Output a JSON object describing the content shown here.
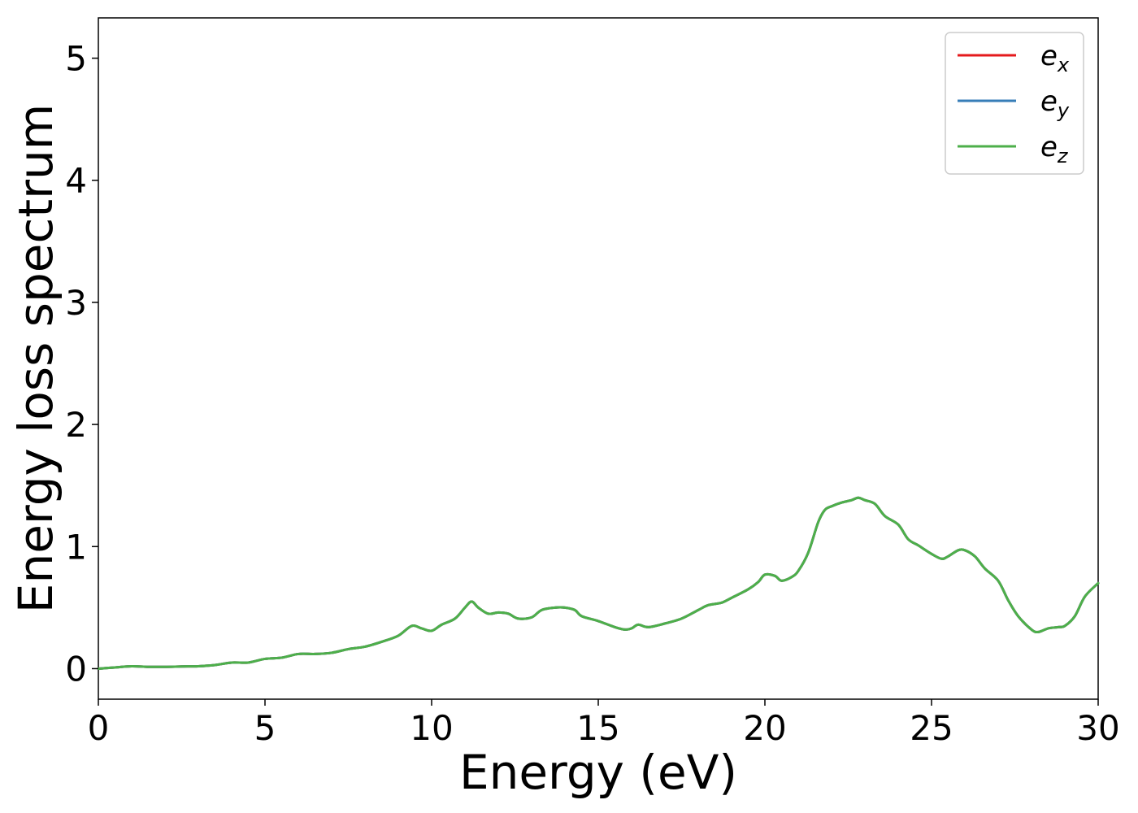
{
  "chart_data": {
    "type": "line",
    "title": "",
    "xlabel": "Energy (eV)",
    "ylabel": "Energy loss spectrum",
    "xlim": [
      0,
      30
    ],
    "ylim": [
      -0.25,
      5.33
    ],
    "xticks": [
      "0",
      "5",
      "10",
      "15",
      "20",
      "25",
      "30"
    ],
    "yticks": [
      "0",
      "1",
      "2",
      "3",
      "4",
      "5"
    ],
    "grid": false,
    "legend_position": "top-right",
    "x": [
      0,
      0.5,
      1.0,
      1.5,
      2.0,
      2.5,
      3.0,
      3.5,
      4.0,
      4.5,
      5.0,
      5.5,
      6.0,
      6.5,
      7.0,
      7.5,
      8.0,
      8.5,
      9.0,
      9.4,
      9.7,
      10.0,
      10.3,
      10.7,
      11.0,
      11.2,
      11.4,
      11.7,
      12.0,
      12.3,
      12.6,
      13.0,
      13.3,
      13.7,
      14.0,
      14.3,
      14.5,
      15.0,
      15.5,
      15.8,
      16.0,
      16.2,
      16.5,
      17.0,
      17.5,
      18.0,
      18.3,
      18.7,
      19.0,
      19.5,
      19.8,
      20.0,
      20.3,
      20.5,
      20.8,
      21.0,
      21.3,
      21.6,
      21.8,
      22.0,
      22.3,
      22.6,
      22.8,
      23.0,
      23.3,
      23.6,
      24.0,
      24.3,
      24.6,
      25.0,
      25.3,
      25.5,
      25.8,
      26.0,
      26.3,
      26.6,
      27.0,
      27.3,
      27.6,
      28.0,
      28.2,
      28.5,
      28.8,
      29.0,
      29.3,
      29.6,
      30.0
    ],
    "series": [
      {
        "name": "e_x",
        "label_base": "e",
        "label_sub": "x",
        "color": "#e41a1c",
        "values": [
          0.0,
          0.01,
          0.02,
          0.015,
          0.015,
          0.018,
          0.02,
          0.03,
          0.05,
          0.05,
          0.08,
          0.09,
          0.12,
          0.12,
          0.13,
          0.16,
          0.18,
          0.22,
          0.27,
          0.35,
          0.33,
          0.31,
          0.36,
          0.41,
          0.5,
          0.55,
          0.5,
          0.45,
          0.46,
          0.45,
          0.41,
          0.42,
          0.48,
          0.5,
          0.5,
          0.48,
          0.43,
          0.39,
          0.34,
          0.32,
          0.33,
          0.36,
          0.34,
          0.37,
          0.41,
          0.48,
          0.52,
          0.54,
          0.58,
          0.65,
          0.71,
          0.77,
          0.76,
          0.72,
          0.75,
          0.8,
          0.95,
          1.2,
          1.3,
          1.33,
          1.36,
          1.38,
          1.4,
          1.38,
          1.35,
          1.25,
          1.18,
          1.06,
          1.01,
          0.94,
          0.9,
          0.92,
          0.97,
          0.97,
          0.92,
          0.82,
          0.72,
          0.56,
          0.43,
          0.32,
          0.3,
          0.33,
          0.34,
          0.35,
          0.43,
          0.59,
          0.7
        ]
      },
      {
        "name": "e_y",
        "label_base": "e",
        "label_sub": "y",
        "color": "#377eb8",
        "values": [
          0.0,
          0.01,
          0.02,
          0.015,
          0.015,
          0.018,
          0.02,
          0.03,
          0.05,
          0.05,
          0.08,
          0.09,
          0.12,
          0.12,
          0.13,
          0.16,
          0.18,
          0.22,
          0.27,
          0.35,
          0.33,
          0.31,
          0.36,
          0.41,
          0.5,
          0.55,
          0.5,
          0.45,
          0.46,
          0.45,
          0.41,
          0.42,
          0.48,
          0.5,
          0.5,
          0.48,
          0.43,
          0.39,
          0.34,
          0.32,
          0.33,
          0.36,
          0.34,
          0.37,
          0.41,
          0.48,
          0.52,
          0.54,
          0.58,
          0.65,
          0.71,
          0.77,
          0.76,
          0.72,
          0.75,
          0.8,
          0.95,
          1.2,
          1.3,
          1.33,
          1.36,
          1.38,
          1.4,
          1.38,
          1.35,
          1.25,
          1.18,
          1.06,
          1.01,
          0.94,
          0.9,
          0.92,
          0.97,
          0.97,
          0.92,
          0.82,
          0.72,
          0.56,
          0.43,
          0.32,
          0.3,
          0.33,
          0.34,
          0.35,
          0.43,
          0.59,
          0.7
        ]
      },
      {
        "name": "e_z",
        "label_base": "e",
        "label_sub": "z",
        "color": "#4daf4a",
        "values": [
          0.0,
          0.01,
          0.02,
          0.015,
          0.015,
          0.018,
          0.02,
          0.03,
          0.05,
          0.05,
          0.08,
          0.09,
          0.12,
          0.12,
          0.13,
          0.16,
          0.18,
          0.22,
          0.27,
          0.35,
          0.33,
          0.31,
          0.36,
          0.41,
          0.5,
          0.55,
          0.5,
          0.45,
          0.46,
          0.45,
          0.41,
          0.42,
          0.48,
          0.5,
          0.5,
          0.48,
          0.43,
          0.39,
          0.34,
          0.32,
          0.33,
          0.36,
          0.34,
          0.37,
          0.41,
          0.48,
          0.52,
          0.54,
          0.58,
          0.65,
          0.71,
          0.77,
          0.76,
          0.72,
          0.75,
          0.8,
          0.95,
          1.2,
          1.3,
          1.33,
          1.36,
          1.38,
          1.4,
          1.38,
          1.35,
          1.25,
          1.18,
          1.06,
          1.01,
          0.94,
          0.9,
          0.92,
          0.97,
          0.97,
          0.92,
          0.82,
          0.72,
          0.56,
          0.43,
          0.32,
          0.3,
          0.33,
          0.34,
          0.35,
          0.43,
          0.59,
          0.7
        ]
      }
    ]
  }
}
